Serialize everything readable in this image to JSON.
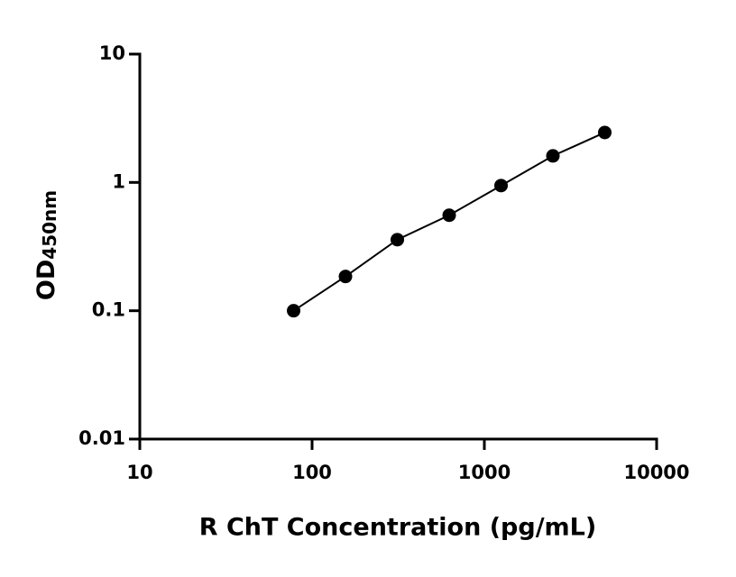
{
  "chart_data": {
    "type": "scatter",
    "xlabel": "R ChT Concentration (pg/mL)",
    "ylabel": "OD",
    "ylabel_subscript": "450nm",
    "x": [
      78.125,
      156.25,
      312.5,
      625,
      1250,
      2500,
      5000
    ],
    "series": [
      {
        "color": "#000000",
        "values": [
          0.1,
          0.185,
          0.358,
          0.555,
          0.945,
          1.61,
          2.45
        ]
      }
    ],
    "line": true,
    "xlog": true,
    "ylog": true,
    "xlim": [
      10,
      10000
    ],
    "ylim": [
      0.01,
      10
    ],
    "xticks": [
      10,
      100,
      1000,
      10000
    ],
    "yticks": [
      0.01,
      0.1,
      1,
      10
    ]
  }
}
